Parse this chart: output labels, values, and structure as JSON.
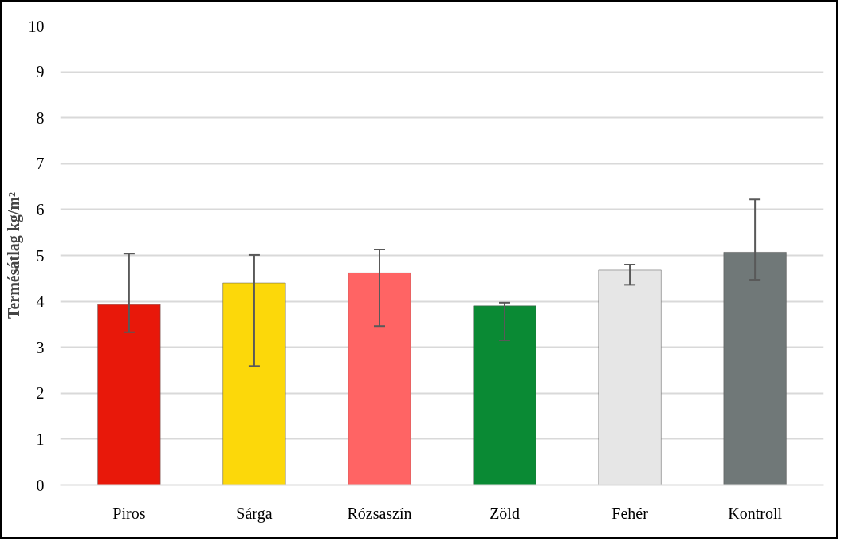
{
  "chart_data": {
    "type": "bar",
    "ylabel": "Termésátlag kg/m²",
    "categories": [
      "Piros",
      "Sárga",
      "Rózsaszín",
      "Zöld",
      "Fehér",
      "Kontroll"
    ],
    "values": [
      3.93,
      4.4,
      4.62,
      3.9,
      4.68,
      5.07
    ],
    "colors": [
      "#e8180a",
      "#fcd80a",
      "#ff6464",
      "#0a8a34",
      "#e6e6e6",
      "#707878"
    ],
    "errors": [
      [
        3.33,
        5.04
      ],
      [
        2.59,
        5.01
      ],
      [
        3.46,
        5.13
      ],
      [
        3.15,
        3.97
      ],
      [
        4.36,
        4.8
      ],
      [
        4.47,
        6.22
      ]
    ],
    "ylim": [
      0,
      10
    ],
    "yticks": [
      0,
      1,
      2,
      3,
      4,
      5,
      6,
      7,
      8,
      9,
      10
    ],
    "grid": "y"
  }
}
